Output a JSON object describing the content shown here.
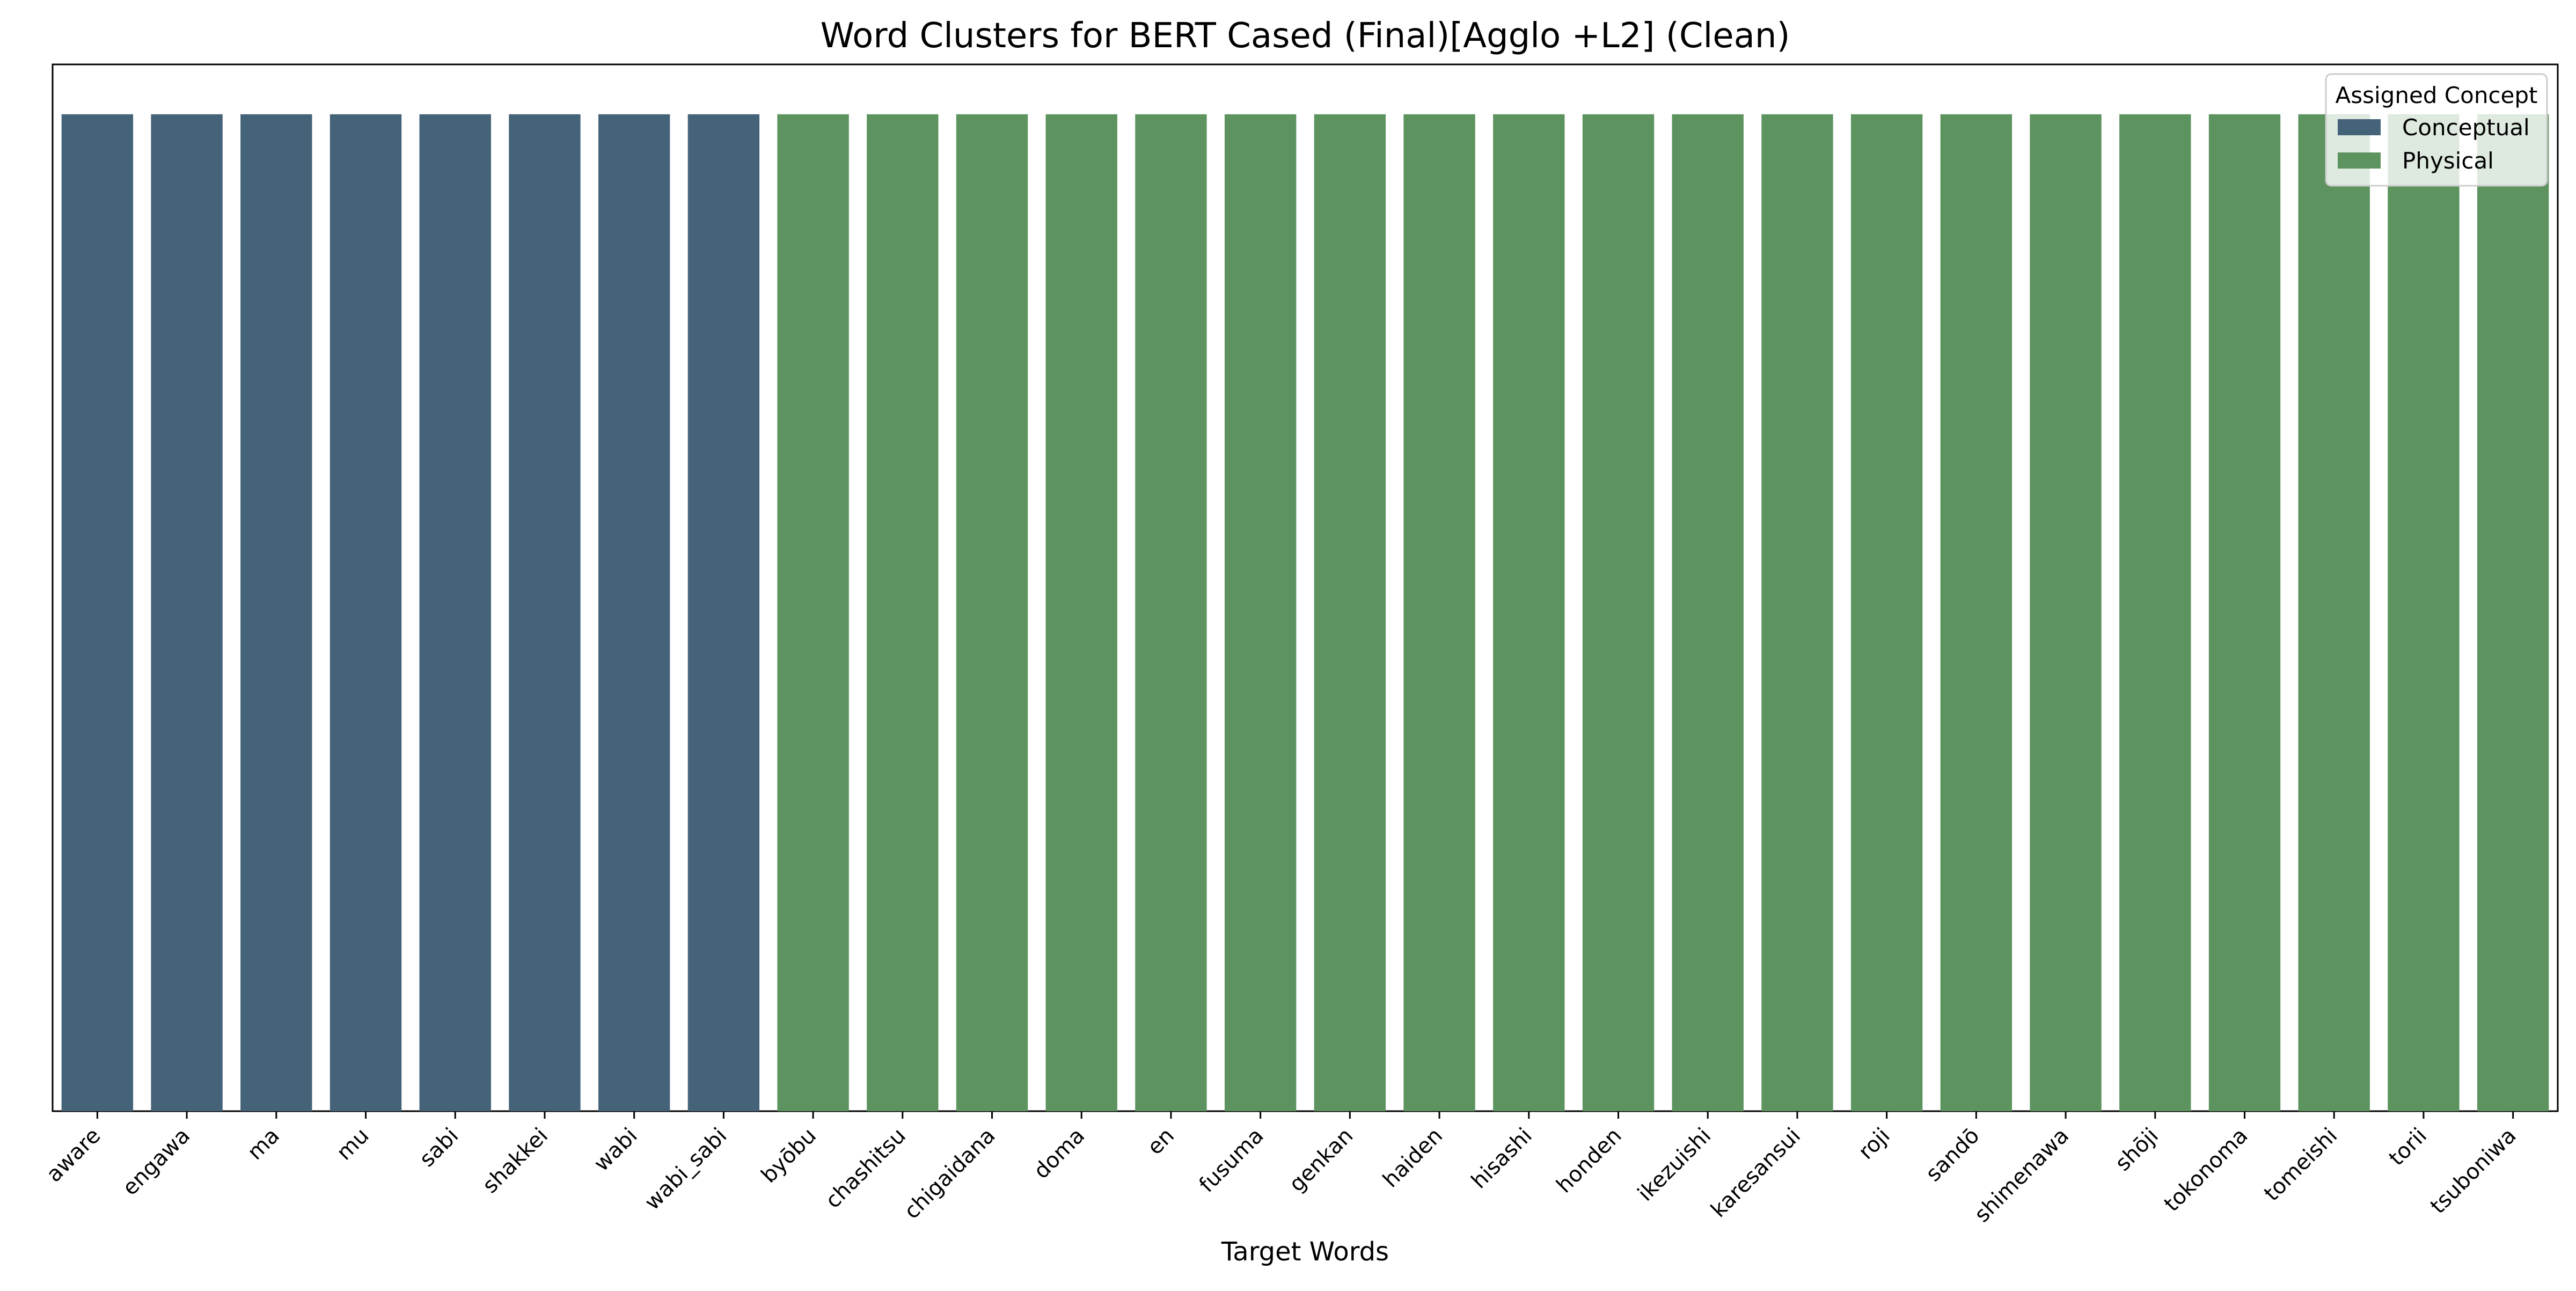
{
  "chart_data": {
    "type": "bar",
    "title": "Word Clusters for BERT Cased (Final)[Agglo +L2] (Clean)",
    "xlabel": "Target Words",
    "ylabel": "",
    "categories": [
      "aware",
      "engawa",
      "ma",
      "mu",
      "sabi",
      "shakkei",
      "wabi",
      "wabi_sabi",
      "byōbu",
      "chashitsu",
      "chigaidana",
      "doma",
      "en",
      "fusuma",
      "genkan",
      "haiden",
      "hisashi",
      "honden",
      "ikezuishi",
      "karesansui",
      "roji",
      "sandō",
      "shimenawa",
      "shōji",
      "tokonoma",
      "tomeishi",
      "torii",
      "tsuboniwa"
    ],
    "values": [
      1,
      1,
      1,
      1,
      1,
      1,
      1,
      1,
      1,
      1,
      1,
      1,
      1,
      1,
      1,
      1,
      1,
      1,
      1,
      1,
      1,
      1,
      1,
      1,
      1,
      1,
      1,
      1
    ],
    "series_assignment": [
      "Conceptual",
      "Conceptual",
      "Conceptual",
      "Conceptual",
      "Conceptual",
      "Conceptual",
      "Conceptual",
      "Conceptual",
      "Physical",
      "Physical",
      "Physical",
      "Physical",
      "Physical",
      "Physical",
      "Physical",
      "Physical",
      "Physical",
      "Physical",
      "Physical",
      "Physical",
      "Physical",
      "Physical",
      "Physical",
      "Physical",
      "Physical",
      "Physical",
      "Physical",
      "Physical"
    ],
    "ylim": [
      0,
      1.05
    ],
    "y_ticks_shown": false,
    "grid": false,
    "legend": {
      "title": "Assigned Concept",
      "placement": "top-right",
      "entries": [
        {
          "name": "Conceptual",
          "color": "#446278"
        },
        {
          "name": "Physical",
          "color": "#5c935e"
        }
      ]
    }
  }
}
